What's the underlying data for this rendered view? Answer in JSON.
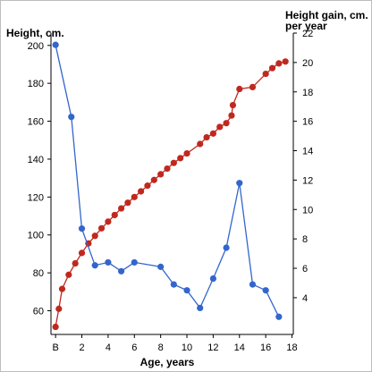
{
  "chart_data": {
    "type": "line",
    "y_left_title": "Height, cm.",
    "y_right_title_line1": "Height gain, cm.",
    "y_right_title_line2": "per year",
    "x_title": "Age, years",
    "x_ticks": [
      {
        "value": 0,
        "label": "B"
      },
      {
        "value": 2,
        "label": "2"
      },
      {
        "value": 4,
        "label": "4"
      },
      {
        "value": 6,
        "label": "6"
      },
      {
        "value": 8,
        "label": "8"
      },
      {
        "value": 10,
        "label": "10"
      },
      {
        "value": 12,
        "label": "12"
      },
      {
        "value": 14,
        "label": "14"
      },
      {
        "value": 16,
        "label": "16"
      },
      {
        "value": 18,
        "label": "18"
      }
    ],
    "xlim": [
      -0.35,
      18.1
    ],
    "y_left_ticks": [
      60,
      80,
      100,
      120,
      140,
      160,
      180,
      200
    ],
    "y_left_lim": [
      47.5,
      206.5
    ],
    "y_right_ticks": [
      4,
      6,
      8,
      10,
      12,
      14,
      16,
      18,
      20,
      22
    ],
    "y_right_lim": [
      1.5,
      22.0
    ],
    "grid": false,
    "legend": "none",
    "series": [
      {
        "axis": "left",
        "color": "#c0281e",
        "points": [
          [
            0,
            51.5
          ],
          [
            0.25,
            61
          ],
          [
            0.5,
            71.5
          ],
          [
            1.0,
            79
          ],
          [
            1.5,
            85
          ],
          [
            2.0,
            90.5
          ],
          [
            2.5,
            95.5
          ],
          [
            3.0,
            99.5
          ],
          [
            3.5,
            103.5
          ],
          [
            4.0,
            107
          ],
          [
            4.5,
            110.5
          ],
          [
            5.0,
            114
          ],
          [
            5.5,
            117
          ],
          [
            6.0,
            120
          ],
          [
            6.5,
            123
          ],
          [
            7.0,
            126
          ],
          [
            7.5,
            129
          ],
          [
            8.0,
            132
          ],
          [
            8.5,
            135
          ],
          [
            9.0,
            138
          ],
          [
            9.5,
            140.5
          ],
          [
            10.0,
            143
          ],
          [
            11.0,
            148
          ],
          [
            11.5,
            151.5
          ],
          [
            12.0,
            153.5
          ],
          [
            12.5,
            157
          ],
          [
            13.0,
            159
          ],
          [
            13.4,
            163
          ],
          [
            13.5,
            168.5
          ],
          [
            14.0,
            177
          ],
          [
            15.0,
            178
          ],
          [
            16.0,
            185
          ],
          [
            16.5,
            188
          ],
          [
            17.0,
            190.5
          ],
          [
            17.5,
            191.5
          ]
        ]
      },
      {
        "axis": "right",
        "color": "#3366cc",
        "points": [
          [
            0,
            21.2
          ],
          [
            1.2,
            16.3
          ],
          [
            2.0,
            8.7
          ],
          [
            3.0,
            6.2
          ],
          [
            4.0,
            6.4
          ],
          [
            5.0,
            5.8
          ],
          [
            6.0,
            6.4
          ],
          [
            8.0,
            6.1
          ],
          [
            9.0,
            4.9
          ],
          [
            10.0,
            4.5
          ],
          [
            11.0,
            3.3
          ],
          [
            12.0,
            5.3
          ],
          [
            13.0,
            7.4
          ],
          [
            14.0,
            11.8
          ],
          [
            15.0,
            4.9
          ],
          [
            16.0,
            4.5
          ],
          [
            17.0,
            2.7
          ]
        ]
      }
    ]
  }
}
